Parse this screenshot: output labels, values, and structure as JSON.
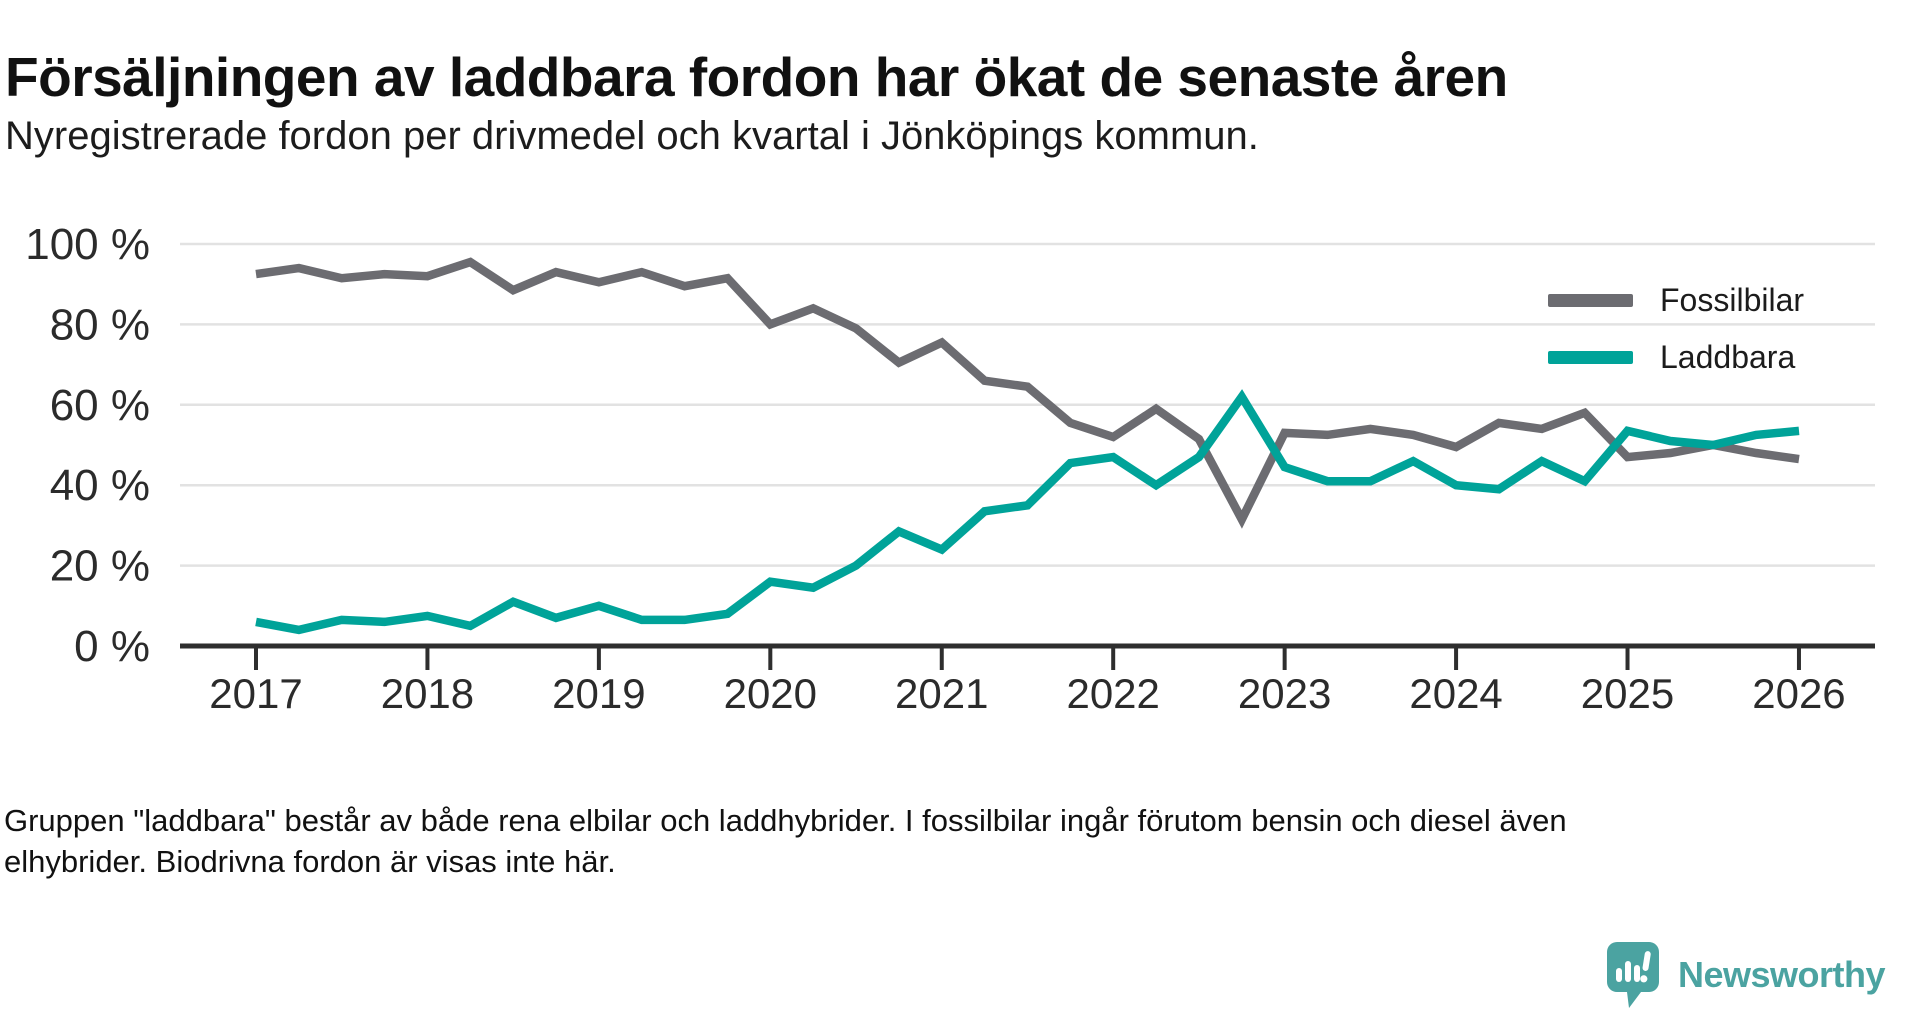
{
  "header": {
    "title": "Försäljningen av laddbara fordon har ökat de senaste åren",
    "subtitle": "Nyregistrerade fordon per drivmedel och kvartal i Jönköpings kommun."
  },
  "chart_data": {
    "type": "line",
    "title": "Försäljningen av laddbara fordon har ökat de senaste åren",
    "subtitle": "Nyregistrerade fordon per drivmedel och kvartal i Jönköpings kommun.",
    "unit": "percent",
    "ylim": [
      0,
      100
    ],
    "y_ticks": [
      0,
      20,
      40,
      60,
      80,
      100
    ],
    "y_tick_suffix": " %",
    "x_ticks": [
      2017,
      2018,
      2019,
      2020,
      2021,
      2022,
      2023,
      2024,
      2025,
      2026
    ],
    "grid": "horizontal",
    "legend_position": "top-right",
    "categories": [
      "2017 Q1",
      "2017 Q2",
      "2017 Q3",
      "2017 Q4",
      "2018 Q1",
      "2018 Q2",
      "2018 Q3",
      "2018 Q4",
      "2019 Q1",
      "2019 Q2",
      "2019 Q3",
      "2019 Q4",
      "2020 Q1",
      "2020 Q2",
      "2020 Q3",
      "2020 Q4",
      "2021 Q1",
      "2021 Q2",
      "2021 Q3",
      "2021 Q4",
      "2022 Q1",
      "2022 Q2",
      "2022 Q3",
      "2022 Q4",
      "2023 Q1",
      "2023 Q2",
      "2023 Q3",
      "2023 Q4",
      "2024 Q1",
      "2024 Q2",
      "2024 Q3",
      "2024 Q4",
      "2025 Q1",
      "2025 Q2",
      "2025 Q3",
      "2025 Q4",
      "2026 Q1"
    ],
    "series": [
      {
        "name": "Fossilbilar",
        "color": "#6c6c71",
        "values": [
          92.5,
          94,
          91.5,
          92.5,
          92,
          95.5,
          88.5,
          93,
          90.5,
          93,
          89.5,
          91.5,
          80,
          84,
          79,
          70.5,
          75.5,
          66,
          64.5,
          55.5,
          52,
          59,
          51.5,
          31.5,
          53,
          52.5,
          54,
          52.5,
          49.5,
          55.5,
          54,
          58,
          47,
          48,
          50,
          48,
          46.5
        ]
      },
      {
        "name": "Laddbara",
        "color": "#00a399",
        "values": [
          6,
          4,
          6.5,
          6,
          7.5,
          5,
          11,
          7,
          10,
          6.5,
          6.5,
          8,
          16,
          14.5,
          20,
          28.5,
          24,
          33.5,
          35,
          45.5,
          47,
          40,
          47,
          62,
          44.5,
          41,
          41,
          46,
          40,
          39,
          46,
          41,
          53.5,
          51,
          50,
          52.5,
          53.5
        ]
      }
    ]
  },
  "footer": {
    "lines": [
      "Gruppen \"laddbara\" består av både rena elbilar och laddhybrider. I fossilbilar ingår förutom bensin och diesel även",
      "elhybrider. Biodrivna fordon är visas inte här."
    ]
  },
  "branding": {
    "logo_text": "Newsworthy",
    "logo_color": "#4ba3a1",
    "logo_icon": "bar-chart-speech-bubble-icon"
  },
  "colors": {
    "fossil_line": "#6c6c71",
    "laddbara_line": "#00a399",
    "gridline": "#e2e2e2",
    "axis": "#2e2e2e",
    "text": "#111111"
  }
}
